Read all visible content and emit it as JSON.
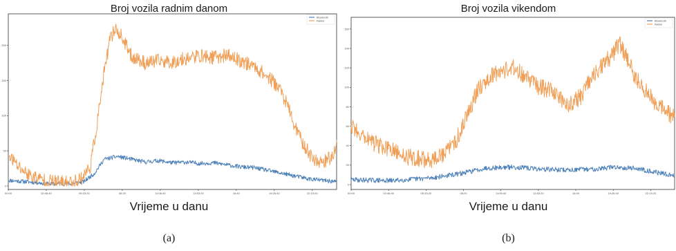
{
  "panels": [
    {
      "caption": "(a)",
      "chart_data": {
        "type": "line",
        "title": "Broj vozila radnim danom",
        "xlabel": "Vrijeme u danu",
        "ylabel": "",
        "x_tick_labels": [
          "00:00",
          "02:46:40",
          "05:33:20",
          "08:20",
          "11:06:40",
          "13:53:20",
          "16:40",
          "19:26:40",
          "22:13:20"
        ],
        "y_tick_labels": [
          "0",
          "50",
          "100",
          "150",
          "200"
        ],
        "ylim": [
          -5,
          245
        ],
        "legend_position": "top-right",
        "grid": false,
        "series": [
          {
            "name": "Bluetooth",
            "color": "#4a7fb8",
            "keypoints": [
              [
                0,
                8
              ],
              [
                2,
                5
              ],
              [
                3,
                3
              ],
              [
                4.5,
                3
              ],
              [
                5.5,
                6
              ],
              [
                6.3,
                18
              ],
              [
                7,
                38
              ],
              [
                8,
                42
              ],
              [
                9,
                38
              ],
              [
                10,
                34
              ],
              [
                11,
                36
              ],
              [
                12,
                33
              ],
              [
                13,
                34
              ],
              [
                14,
                32
              ],
              [
                15,
                33
              ],
              [
                16,
                30
              ],
              [
                17,
                27
              ],
              [
                18,
                26
              ],
              [
                19,
                22
              ],
              [
                20,
                18
              ],
              [
                21,
                14
              ],
              [
                22,
                10
              ],
              [
                23,
                8
              ],
              [
                24,
                6
              ]
            ],
            "noise": 3
          },
          {
            "name": "Radar",
            "color": "#ef9f57",
            "keypoints": [
              [
                0,
                45
              ],
              [
                0.7,
                28
              ],
              [
                1.5,
                16
              ],
              [
                2.3,
                10
              ],
              [
                3,
                7
              ],
              [
                4,
                5
              ],
              [
                4.8,
                6
              ],
              [
                5.4,
                12
              ],
              [
                6,
                28
              ],
              [
                6.5,
                90
              ],
              [
                7,
                160
              ],
              [
                7.4,
                205
              ],
              [
                7.8,
                225
              ],
              [
                8.2,
                215
              ],
              [
                9,
                185
              ],
              [
                10,
                175
              ],
              [
                11,
                178
              ],
              [
                12,
                176
              ],
              [
                13,
                182
              ],
              [
                14,
                185
              ],
              [
                15,
                183
              ],
              [
                16,
                186
              ],
              [
                17,
                178
              ],
              [
                18,
                170
              ],
              [
                19,
                155
              ],
              [
                19.8,
                140
              ],
              [
                20.4,
                115
              ],
              [
                21,
                82
              ],
              [
                21.7,
                55
              ],
              [
                22.3,
                38
              ],
              [
                23,
                34
              ],
              [
                23.7,
                42
              ],
              [
                24,
                60
              ]
            ],
            "noise": 10
          }
        ]
      }
    },
    {
      "caption": "(b)",
      "chart_data": {
        "type": "line",
        "title": "Broj vozila vikendom",
        "xlabel": "Vrijeme u danu",
        "ylabel": "",
        "x_tick_labels": [
          "00:00",
          "02:46:40",
          "05:33:20",
          "08:20",
          "11:06:40",
          "13:53:20",
          "16:40",
          "19:26:40",
          "22:13:20"
        ],
        "y_tick_labels": [
          "0",
          "20",
          "40",
          "60",
          "80",
          "100",
          "120",
          "140",
          "160"
        ],
        "ylim": [
          -5,
          172
        ],
        "legend_position": "top-right",
        "grid": false,
        "series": [
          {
            "name": "Bluetooth",
            "color": "#4a7fb8",
            "keypoints": [
              [
                0,
                5
              ],
              [
                3,
                4
              ],
              [
                6,
                7
              ],
              [
                8,
                11
              ],
              [
                10,
                17
              ],
              [
                12,
                18
              ],
              [
                14,
                16
              ],
              [
                16,
                15
              ],
              [
                18,
                16
              ],
              [
                19.5,
                18
              ],
              [
                21,
                17
              ],
              [
                22.5,
                13
              ],
              [
                24,
                9
              ]
            ],
            "noise": 2.5
          },
          {
            "name": "Radar",
            "color": "#ef9f57",
            "keypoints": [
              [
                0,
                60
              ],
              [
                0.8,
                52
              ],
              [
                1.8,
                42
              ],
              [
                2.8,
                36
              ],
              [
                3.8,
                30
              ],
              [
                4.8,
                27
              ],
              [
                5.8,
                25
              ],
              [
                6.8,
                30
              ],
              [
                7.8,
                45
              ],
              [
                8.6,
                72
              ],
              [
                9.4,
                98
              ],
              [
                10.3,
                112
              ],
              [
                11.3,
                118
              ],
              [
                12.2,
                120
              ],
              [
                13,
                110
              ],
              [
                14,
                100
              ],
              [
                15,
                96
              ],
              [
                16,
                82
              ],
              [
                17,
                90
              ],
              [
                17.8,
                108
              ],
              [
                18.5,
                120
              ],
              [
                19.3,
                132
              ],
              [
                19.9,
                145
              ],
              [
                20.5,
                130
              ],
              [
                21,
                112
              ],
              [
                21.6,
                100
              ],
              [
                22.3,
                88
              ],
              [
                23,
                80
              ],
              [
                24,
                68
              ]
            ],
            "noise": 9
          }
        ]
      }
    }
  ]
}
